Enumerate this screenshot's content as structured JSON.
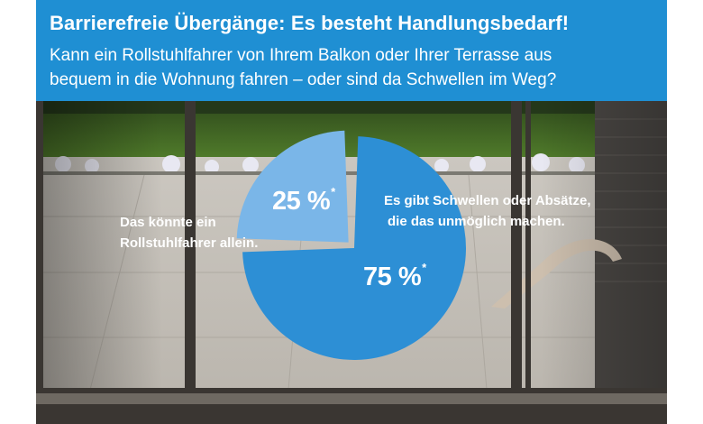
{
  "header": {
    "title": "Barrierefreie Übergänge: Es besteht Handlungsbedarf!",
    "subtitle_lines": [
      "Kann ein Rollstuhlfahrer von Ihrem Balkon oder Ihrer Terrasse aus",
      "bequem in die Wohnung fahren – oder sind da Schwellen im Weg?"
    ]
  },
  "chart_data": {
    "type": "pie",
    "categories": [
      "Das könnte ein Rollstuhlfahrer allein.",
      "Es gibt Schwellen oder Absätze, die das unmöglich machen."
    ],
    "values": [
      25,
      75
    ],
    "value_labels": [
      "25 %",
      "75 %"
    ],
    "footnote_marker": "*",
    "slices": [
      {
        "value": 25,
        "value_label": "25 %",
        "label_lines": [
          "Das könnte ein",
          "Rollstuhlfahrer allein."
        ],
        "color": "#7ab6e8",
        "exploded": true
      },
      {
        "value": 75,
        "value_label": "75 %",
        "label_lines": [
          "Es gibt Schwellen oder Absätze,",
          "die das unmöglich machen."
        ],
        "color": "#2d8fd5",
        "exploded": false
      }
    ]
  },
  "colors": {
    "header_bg": "#1f8fd3",
    "text": "#ffffff"
  }
}
